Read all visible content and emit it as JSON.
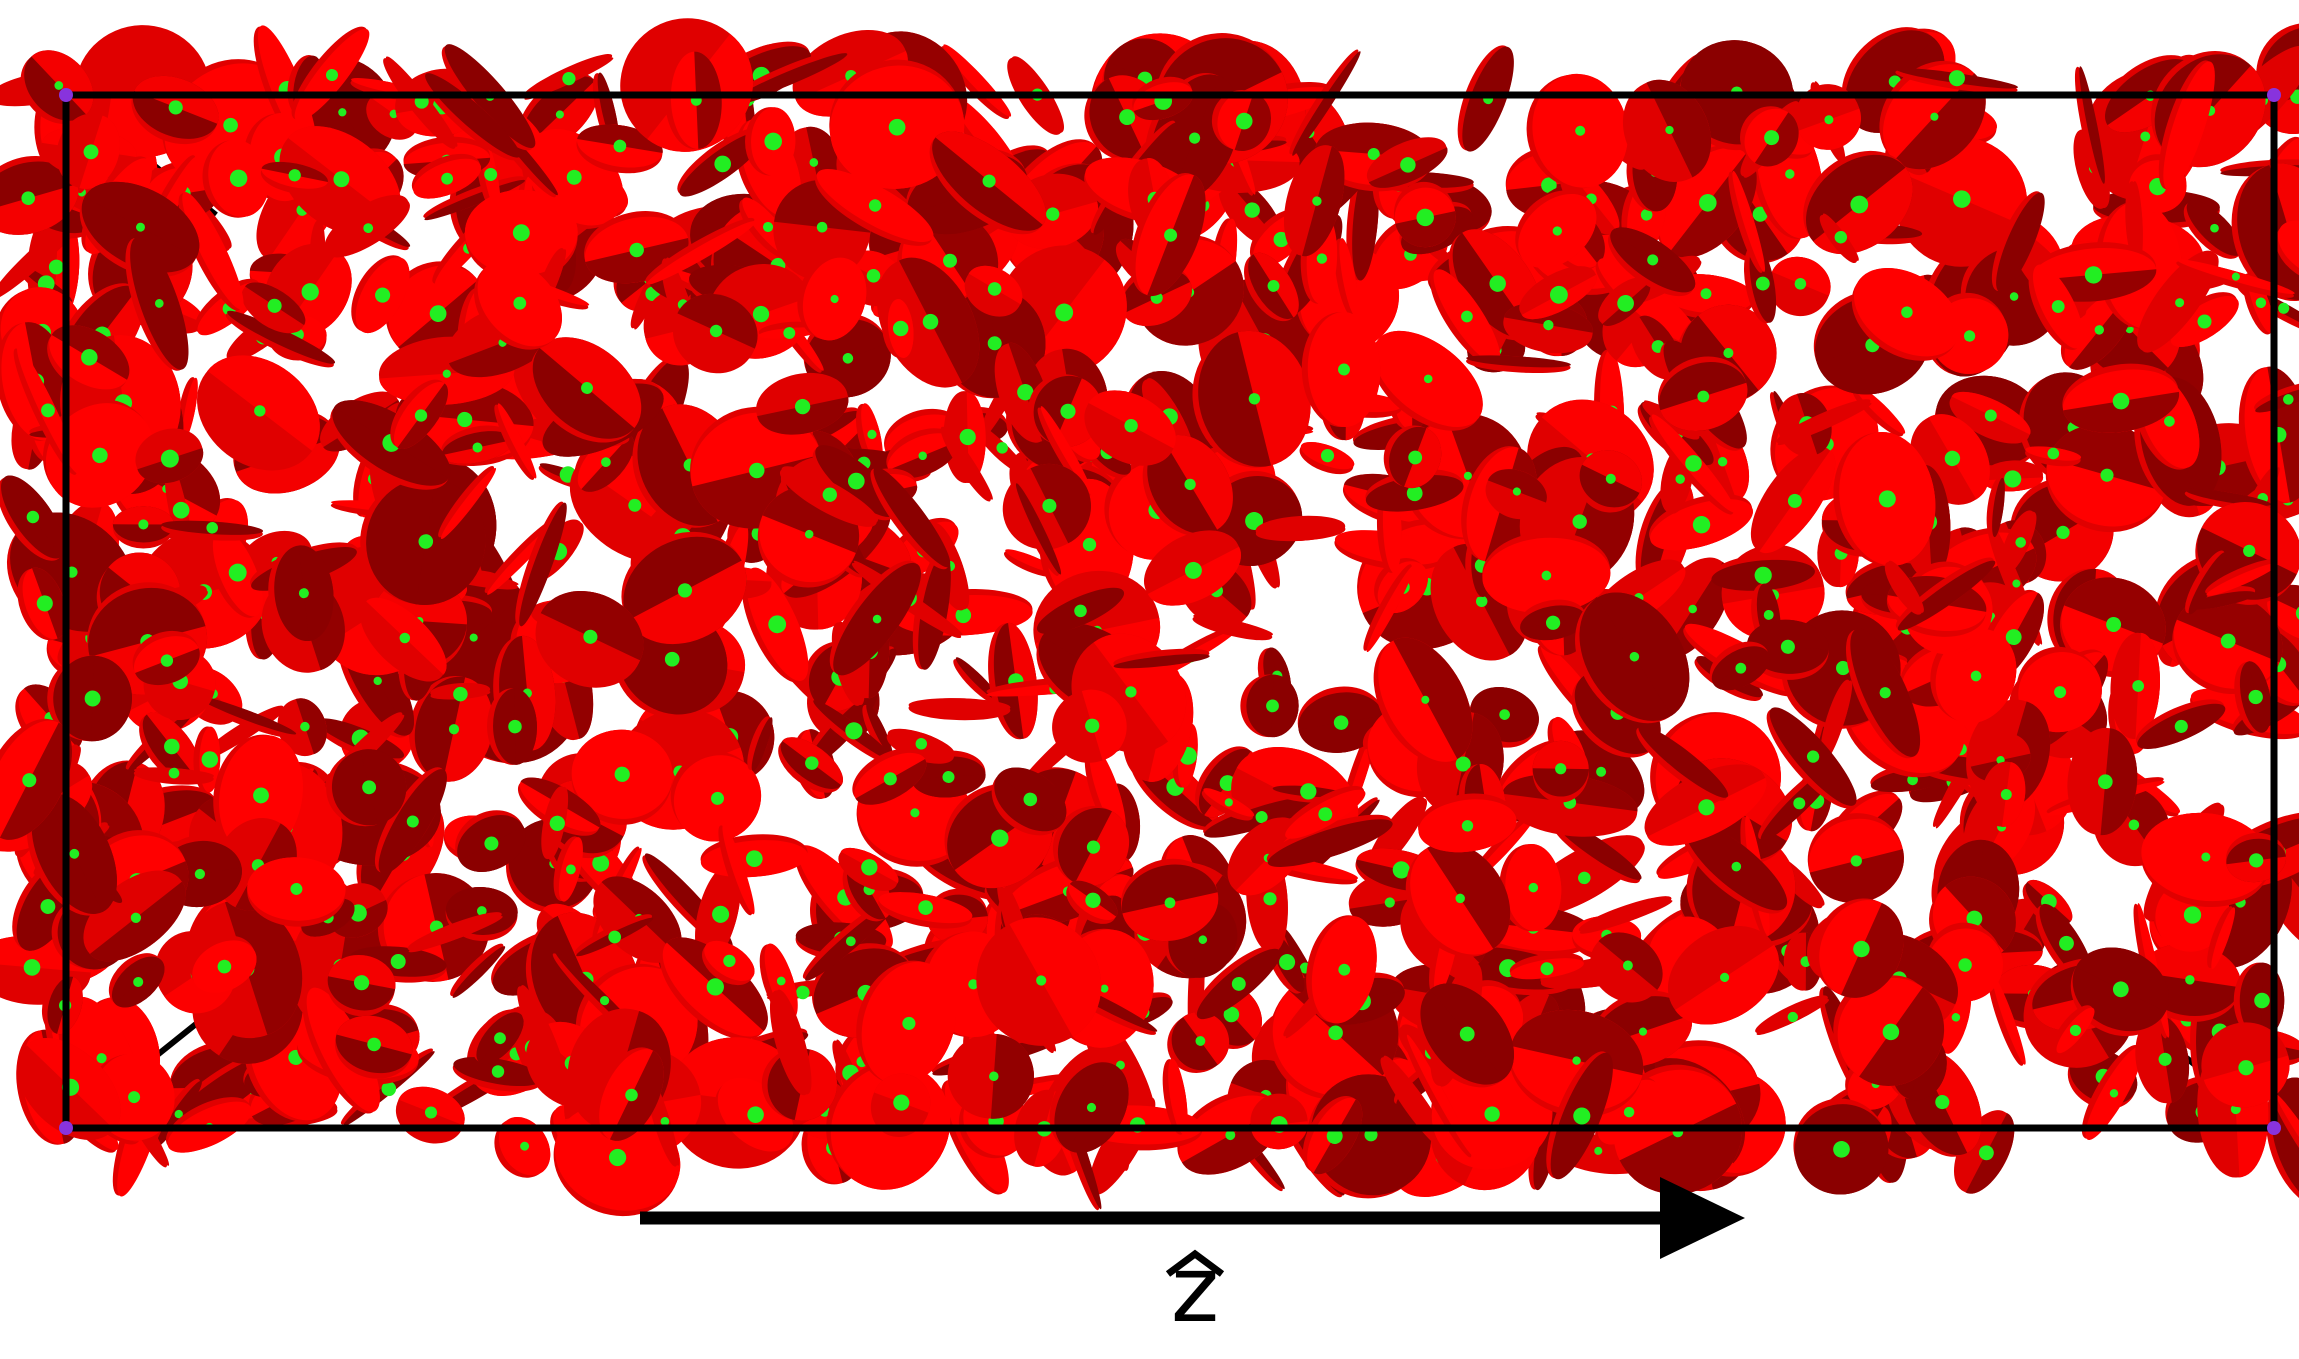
{
  "figure": {
    "axis_label": "z",
    "colors": {
      "background": "#ffffff",
      "box_frame": "#000000",
      "disk_light": "#ff0000",
      "disk_mid": "#e00000",
      "disk_dark": "#8b0000",
      "particle_center": "#22ee22",
      "box_corner": "#8833dd",
      "arrow": "#000000"
    },
    "icons": [
      "direction-arrow-icon",
      "unit-vector-hat-icon"
    ]
  }
}
